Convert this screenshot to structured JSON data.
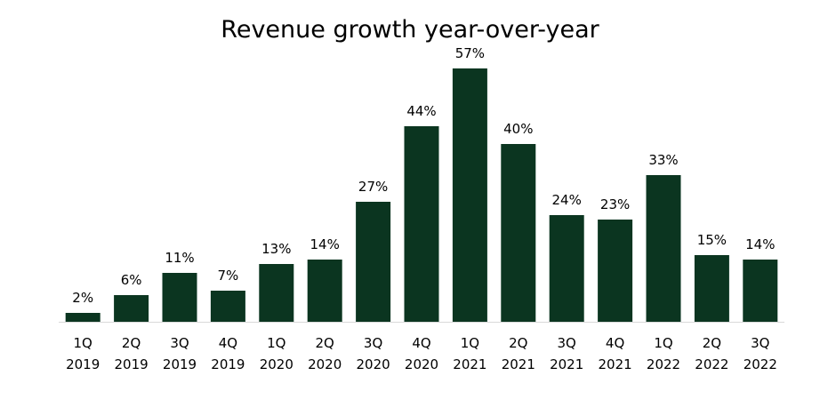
{
  "chart_data": {
    "type": "bar",
    "title": "Revenue growth year-over-year",
    "xlabel": "",
    "ylabel": "",
    "ylim": [
      0,
      60
    ],
    "grid": false,
    "legend": "none",
    "value_suffix": "%",
    "categories": [
      [
        "1Q",
        "2019"
      ],
      [
        "2Q",
        "2019"
      ],
      [
        "3Q",
        "2019"
      ],
      [
        "4Q",
        "2019"
      ],
      [
        "1Q",
        "2020"
      ],
      [
        "2Q",
        "2020"
      ],
      [
        "3Q",
        "2020"
      ],
      [
        "4Q",
        "2020"
      ],
      [
        "1Q",
        "2021"
      ],
      [
        "2Q",
        "2021"
      ],
      [
        "3Q",
        "2021"
      ],
      [
        "4Q",
        "2021"
      ],
      [
        "1Q",
        "2022"
      ],
      [
        "2Q",
        "2022"
      ],
      [
        "3Q",
        "2022"
      ]
    ],
    "values": [
      2,
      6,
      11,
      7,
      13,
      14,
      27,
      44,
      57,
      40,
      24,
      23,
      33,
      15,
      14
    ],
    "data_labels": [
      "2%",
      "6%",
      "11%",
      "7%",
      "13%",
      "14%",
      "27%",
      "44%",
      "57%",
      "40%",
      "24%",
      "23%",
      "33%",
      "15%",
      "14%"
    ],
    "colors": {
      "bar": "#0b3520",
      "axis": "#d9d9d9",
      "text": "#000000"
    }
  }
}
